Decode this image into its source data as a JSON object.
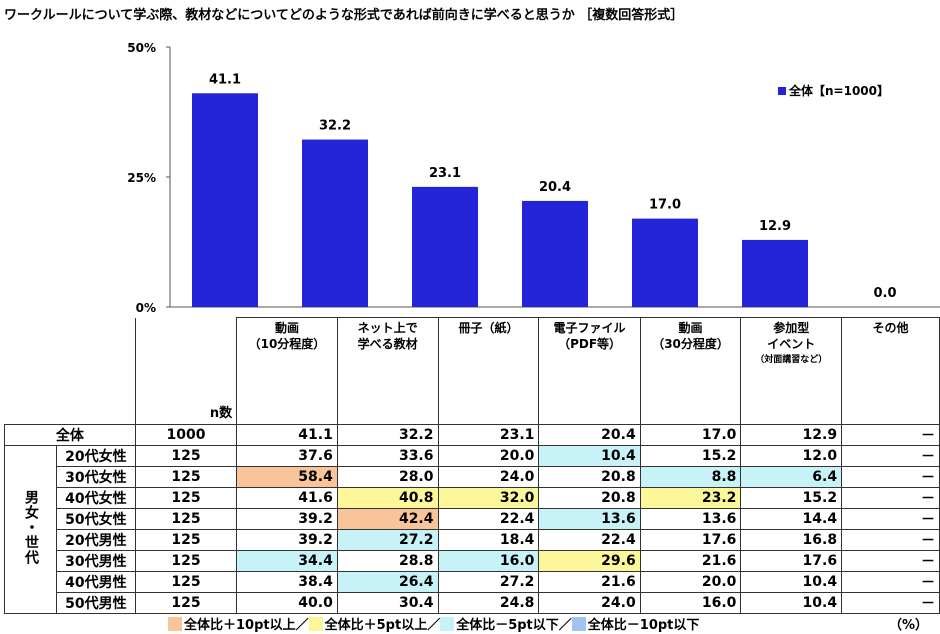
{
  "title": "ワークルールについて学ぶ際、教材などについてどのような形式であれば前向きに学べると思うか ［複数回答形式］",
  "chart_data": {
    "type": "bar",
    "categories": [
      "動画（10分程度）",
      "ネット上で学べる教材",
      "冊子（紙）",
      "電子ファイル（PDF等）",
      "動画（30分程度）",
      "参加型イベント（対面講習など）",
      "その他"
    ],
    "series": [
      {
        "name": "全体【n=1000】",
        "values": [
          41.1,
          32.2,
          23.1,
          20.4,
          17.0,
          12.9,
          0.0
        ]
      }
    ],
    "value_labels": [
      "41.1",
      "32.2",
      "23.1",
      "20.4",
      "17.0",
      "12.9",
      "0.0"
    ],
    "yticks": [
      "0%",
      "25%",
      "50%"
    ],
    "ylim": [
      0,
      50
    ],
    "legend": "全体【n=1000】",
    "legend_position": "top-right",
    "color": "#2424d8"
  },
  "table": {
    "headers": [
      {
        "l1": "動画",
        "l2": "（10分程度）",
        "sub": ""
      },
      {
        "l1": "ネット上で",
        "l2": "学べる教材",
        "sub": ""
      },
      {
        "l1": "冊子（紙）",
        "l2": "",
        "sub": ""
      },
      {
        "l1": "電子ファイル",
        "l2": "（PDF等）",
        "sub": ""
      },
      {
        "l1": "動画",
        "l2": "（30分程度）",
        "sub": ""
      },
      {
        "l1": "参加型",
        "l2": "イベント",
        "sub": "（対面講習など）"
      },
      {
        "l1": "その他",
        "l2": "",
        "sub": ""
      }
    ],
    "n_header": "n数",
    "group_label": "男女・世代",
    "rows": [
      {
        "label": "全体",
        "n": "1000",
        "values": [
          "41.1",
          "32.2",
          "23.1",
          "20.4",
          "17.0",
          "12.9",
          "－"
        ],
        "hl": [
          "",
          "",
          "",
          "",
          "",
          "",
          ""
        ]
      },
      {
        "label": "20代女性",
        "n": "125",
        "values": [
          "37.6",
          "33.6",
          "20.0",
          "10.4",
          "15.2",
          "12.0",
          "－"
        ],
        "hl": [
          "",
          "",
          "",
          "m5",
          "",
          "",
          ""
        ]
      },
      {
        "label": "30代女性",
        "n": "125",
        "values": [
          "58.4",
          "28.0",
          "24.0",
          "20.8",
          "8.8",
          "6.4",
          "－"
        ],
        "hl": [
          "p10",
          "",
          "",
          "",
          "m5",
          "m5",
          ""
        ]
      },
      {
        "label": "40代女性",
        "n": "125",
        "values": [
          "41.6",
          "40.8",
          "32.0",
          "20.8",
          "23.2",
          "15.2",
          "－"
        ],
        "hl": [
          "",
          "p5",
          "p5",
          "",
          "p5",
          "",
          ""
        ]
      },
      {
        "label": "50代女性",
        "n": "125",
        "values": [
          "39.2",
          "42.4",
          "22.4",
          "13.6",
          "13.6",
          "14.4",
          "－"
        ],
        "hl": [
          "",
          "p10",
          "",
          "m5",
          "",
          "",
          ""
        ]
      },
      {
        "label": "20代男性",
        "n": "125",
        "values": [
          "39.2",
          "27.2",
          "18.4",
          "22.4",
          "17.6",
          "16.8",
          "－"
        ],
        "hl": [
          "",
          "m5",
          "",
          "",
          "",
          "",
          ""
        ]
      },
      {
        "label": "30代男性",
        "n": "125",
        "values": [
          "34.4",
          "28.8",
          "16.0",
          "29.6",
          "21.6",
          "17.6",
          "－"
        ],
        "hl": [
          "m5",
          "",
          "m5",
          "p5",
          "",
          "",
          ""
        ]
      },
      {
        "label": "40代男性",
        "n": "125",
        "values": [
          "38.4",
          "26.4",
          "27.2",
          "21.6",
          "20.0",
          "10.4",
          "－"
        ],
        "hl": [
          "",
          "m5",
          "",
          "",
          "",
          "",
          ""
        ]
      },
      {
        "label": "50代男性",
        "n": "125",
        "values": [
          "40.0",
          "30.4",
          "24.8",
          "24.0",
          "16.0",
          "10.4",
          "－"
        ],
        "hl": [
          "",
          "",
          "",
          "",
          "",
          "",
          ""
        ]
      }
    ]
  },
  "highlight_legend": [
    {
      "key": "p10",
      "label": "全体比＋10pt以上／",
      "color": "#f9c49a"
    },
    {
      "key": "p5",
      "label": "全体比＋5pt以上／",
      "color": "#fbf79a"
    },
    {
      "key": "m5",
      "label": "全体比－5pt以下／",
      "color": "#c6f2f8"
    },
    {
      "key": "m10",
      "label": "全体比－10pt以下",
      "color": "#9ec4f0"
    }
  ],
  "unit": "（%）"
}
